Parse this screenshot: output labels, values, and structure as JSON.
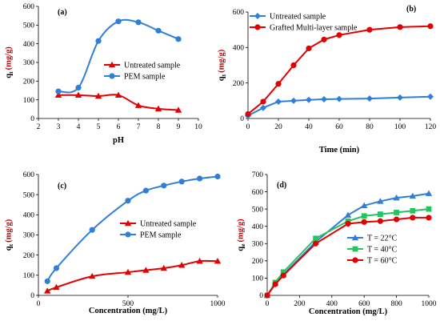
{
  "chart_data": [
    {
      "id": "a",
      "type": "line",
      "panel_label": "(a)",
      "xlabel": "pH",
      "ylabel_main": "q",
      "ylabel_sub": "t",
      "ylabel_unit": "(mg/g)",
      "xlim": [
        2,
        10
      ],
      "ylim": [
        0,
        600
      ],
      "xticks": [
        2,
        3,
        4,
        5,
        6,
        7,
        8,
        9,
        10
      ],
      "yticks": [
        0,
        100,
        200,
        300,
        400,
        500,
        600
      ],
      "smooth": true,
      "legend_position": "center-right",
      "series": [
        {
          "name": "Untreated sample",
          "color": "#e30000",
          "marker": "triangle",
          "x": [
            3,
            4,
            5,
            6,
            7,
            8,
            9
          ],
          "y": [
            125,
            125,
            120,
            125,
            70,
            52,
            45
          ]
        },
        {
          "name": "PEM sample",
          "color": "#2f7ed8",
          "marker": "circle",
          "x": [
            3,
            4,
            5,
            6,
            7,
            8,
            9
          ],
          "y": [
            145,
            165,
            415,
            520,
            515,
            470,
            425
          ]
        }
      ]
    },
    {
      "id": "b",
      "type": "line",
      "panel_label": "(b)",
      "xlabel": "Time (min)",
      "ylabel_main": "q",
      "ylabel_sub": "t",
      "ylabel_unit": "(mg/g)",
      "xlim": [
        0,
        120
      ],
      "ylim": [
        0,
        600
      ],
      "xticks": [
        0,
        20,
        40,
        60,
        80,
        100,
        120
      ],
      "yticks": [
        0,
        200,
        400,
        600
      ],
      "smooth": false,
      "legend_position": "top-left",
      "series": [
        {
          "name": "Untreated sample",
          "color": "#2f7ed8",
          "marker": "diamond",
          "x": [
            0,
            10,
            20,
            30,
            40,
            50,
            60,
            80,
            100,
            120
          ],
          "y": [
            15,
            60,
            95,
            100,
            105,
            108,
            110,
            112,
            118,
            123
          ]
        },
        {
          "name": "Grafted Multi-layer sample",
          "color": "#e30000",
          "marker": "circle",
          "x": [
            0,
            10,
            20,
            30,
            40,
            50,
            60,
            80,
            100,
            120
          ],
          "y": [
            25,
            95,
            195,
            300,
            395,
            445,
            470,
            500,
            515,
            520
          ]
        }
      ]
    },
    {
      "id": "c",
      "type": "line",
      "panel_label": "(c)",
      "xlabel": "Concentration (mg/L)",
      "ylabel_main": "q",
      "ylabel_sub": "t",
      "ylabel_unit": "(mg/g)",
      "xlim": [
        0,
        1000
      ],
      "ylim": [
        0,
        600
      ],
      "xticks": [
        0,
        500,
        1000
      ],
      "yticks": [
        0,
        100,
        200,
        300,
        400,
        500,
        600
      ],
      "smooth": true,
      "legend_position": "center-right",
      "series": [
        {
          "name": "Untreated sample",
          "color": "#e30000",
          "marker": "triangle",
          "x": [
            50,
            100,
            300,
            500,
            600,
            700,
            800,
            900,
            1000
          ],
          "y": [
            22,
            40,
            95,
            115,
            125,
            135,
            150,
            170,
            170
          ]
        },
        {
          "name": "PEM sample",
          "color": "#2f7ed8",
          "marker": "circle",
          "x": [
            50,
            100,
            300,
            500,
            600,
            700,
            800,
            900,
            1000
          ],
          "y": [
            70,
            135,
            325,
            470,
            520,
            545,
            565,
            580,
            590
          ]
        }
      ]
    },
    {
      "id": "d",
      "type": "line",
      "panel_label": "(d)",
      "xlabel": "Concentration (mg/L)",
      "ylabel_main": "q",
      "ylabel_sub": "e",
      "ylabel_unit": "(mg/g)",
      "xlim": [
        0,
        1000
      ],
      "ylim": [
        0,
        700
      ],
      "xticks": [
        0,
        200,
        400,
        600,
        800,
        1000
      ],
      "yticks": [
        0,
        100,
        200,
        300,
        400,
        500,
        600,
        700
      ],
      "smooth": false,
      "legend_position": "bottom-right",
      "series": [
        {
          "name": "T = 22°C",
          "color": "#2f7ed8",
          "marker": "triangle",
          "x": [
            0,
            50,
            100,
            300,
            500,
            600,
            700,
            800,
            900,
            1000
          ],
          "y": [
            0,
            70,
            120,
            310,
            465,
            520,
            545,
            565,
            575,
            590
          ]
        },
        {
          "name": "T = 40°C",
          "color": "#22c55e",
          "marker": "square",
          "x": [
            0,
            50,
            100,
            300,
            500,
            600,
            700,
            800,
            900,
            1000
          ],
          "y": [
            0,
            75,
            135,
            330,
            430,
            460,
            470,
            480,
            490,
            500
          ]
        },
        {
          "name": "T = 60°C",
          "color": "#e30000",
          "marker": "circle",
          "x": [
            0,
            50,
            100,
            300,
            500,
            600,
            700,
            800,
            900,
            1000
          ],
          "y": [
            0,
            65,
            115,
            300,
            415,
            425,
            430,
            440,
            450,
            450
          ]
        }
      ]
    }
  ]
}
